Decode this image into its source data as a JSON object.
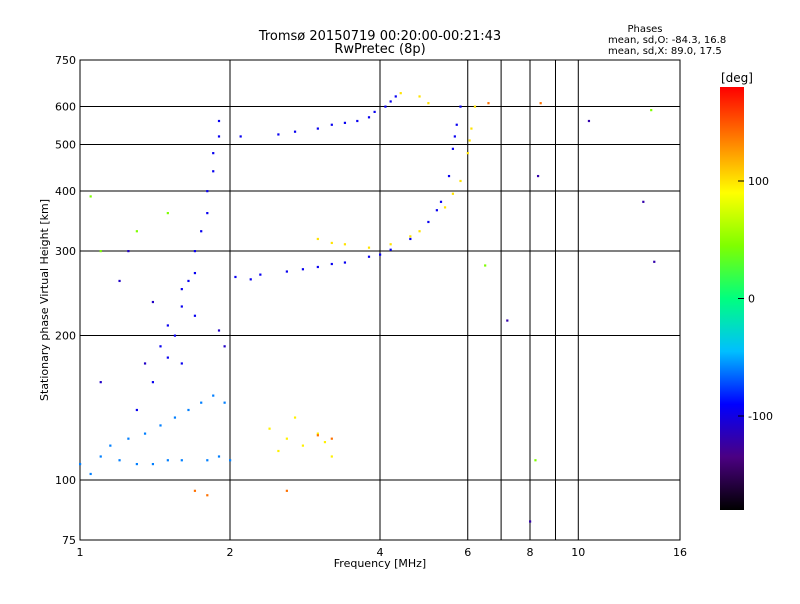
{
  "header": {
    "title_line1": "Tromsø 20150719 00:20:00-00:21:43",
    "title_line2": "RwPretec (8p)",
    "phase_heading": "Phases",
    "phase_o": "mean, sd,O: -84.3, 16.8",
    "phase_x": "mean, sd,X:  89.0, 17.5"
  },
  "colorbar": {
    "label": "[deg]",
    "ticks": [
      {
        "label": "100",
        "value": 100
      },
      {
        "label": "0",
        "value": 0
      },
      {
        "label": "-100",
        "value": -100
      }
    ],
    "range": [
      -180,
      180
    ],
    "colors": [
      "#000000",
      "#4b0082",
      "#0000ff",
      "#00bfff",
      "#00ff7f",
      "#7fff00",
      "#ffff00",
      "#ff7f00",
      "#ff0000"
    ]
  },
  "chart_data": {
    "type": "scatter",
    "xlabel": "Frequency [MHz]",
    "ylabel": "Stationary phase Virtual Height [km]",
    "x_scale": "log",
    "y_scale": "log",
    "xlim": [
      1,
      16
    ],
    "ylim": [
      75,
      750
    ],
    "grid": true,
    "x_ticks": [
      {
        "label": "1",
        "value": 1
      },
      {
        "label": "2",
        "value": 2
      },
      {
        "label": "4",
        "value": 4
      },
      {
        "label": "6",
        "value": 6
      },
      {
        "label": "8",
        "value": 8
      },
      {
        "label": "10",
        "value": 10
      },
      {
        "label": "16",
        "value": 16
      }
    ],
    "x_grid_extra": [
      7,
      9
    ],
    "y_ticks": [
      {
        "label": "75",
        "value": 75
      },
      {
        "label": "100",
        "value": 100
      },
      {
        "label": "200",
        "value": 200
      },
      {
        "label": "300",
        "value": 300
      },
      {
        "label": "400",
        "value": 400
      },
      {
        "label": "500",
        "value": 500
      },
      {
        "label": "600",
        "value": 600
      },
      {
        "label": "750",
        "value": 750
      }
    ],
    "series": [
      {
        "points": [
          [
            1.0,
            108
          ],
          [
            1.1,
            112
          ],
          [
            1.2,
            110
          ],
          [
            1.3,
            108
          ],
          [
            1.4,
            108
          ],
          [
            1.5,
            110
          ],
          [
            1.6,
            110
          ],
          [
            1.8,
            110
          ],
          [
            1.9,
            112
          ],
          [
            2.0,
            110
          ],
          [
            1.05,
            103
          ],
          [
            1.15,
            118
          ],
          [
            1.25,
            122
          ],
          [
            1.35,
            125
          ],
          [
            1.45,
            130
          ],
          [
            1.55,
            135
          ],
          [
            1.65,
            140
          ],
          [
            1.75,
            145
          ],
          [
            1.85,
            150
          ],
          [
            1.95,
            145
          ]
        ],
        "phase": -60
      },
      {
        "points": [
          [
            1.3,
            140
          ],
          [
            1.4,
            160
          ],
          [
            1.5,
            180
          ],
          [
            1.5,
            210
          ],
          [
            1.6,
            230
          ],
          [
            1.6,
            250
          ],
          [
            1.7,
            270
          ],
          [
            1.7,
            300
          ],
          [
            1.75,
            330
          ],
          [
            1.8,
            360
          ],
          [
            1.8,
            400
          ],
          [
            1.85,
            440
          ],
          [
            1.85,
            480
          ],
          [
            1.9,
            520
          ],
          [
            1.9,
            560
          ],
          [
            1.55,
            200
          ],
          [
            1.45,
            190
          ],
          [
            1.65,
            260
          ],
          [
            1.7,
            220
          ],
          [
            1.6,
            175
          ]
        ],
        "phase": -95
      },
      {
        "points": [
          [
            2.05,
            265
          ],
          [
            2.3,
            268
          ],
          [
            2.6,
            272
          ],
          [
            3.0,
            278
          ],
          [
            3.4,
            284
          ],
          [
            3.8,
            292
          ],
          [
            4.2,
            302
          ],
          [
            4.6,
            318
          ],
          [
            5.0,
            345
          ],
          [
            5.3,
            380
          ],
          [
            5.5,
            430
          ],
          [
            5.6,
            490
          ],
          [
            5.7,
            550
          ],
          [
            5.8,
            600
          ],
          [
            4.0,
            295
          ],
          [
            3.2,
            282
          ],
          [
            2.8,
            275
          ],
          [
            2.2,
            262
          ],
          [
            5.2,
            365
          ],
          [
            5.65,
            520
          ]
        ],
        "phase": -95
      },
      {
        "points": [
          [
            2.1,
            520
          ],
          [
            2.5,
            525
          ],
          [
            3.0,
            540
          ],
          [
            3.4,
            555
          ],
          [
            3.8,
            570
          ],
          [
            4.1,
            600
          ],
          [
            4.3,
            630
          ],
          [
            3.6,
            560
          ],
          [
            3.2,
            550
          ],
          [
            2.7,
            532
          ],
          [
            4.2,
            615
          ],
          [
            3.9,
            585
          ]
        ],
        "phase": -95
      },
      {
        "points": [
          [
            3.0,
            318
          ],
          [
            3.4,
            310
          ],
          [
            3.8,
            305
          ],
          [
            4.2,
            310
          ],
          [
            4.8,
            330
          ],
          [
            5.4,
            370
          ],
          [
            5.8,
            420
          ],
          [
            6.0,
            480
          ],
          [
            6.1,
            540
          ],
          [
            6.2,
            600
          ],
          [
            5.6,
            395
          ],
          [
            6.05,
            510
          ],
          [
            4.4,
            640
          ],
          [
            4.8,
            630
          ],
          [
            5.0,
            610
          ],
          [
            3.2,
            312
          ],
          [
            4.6,
            322
          ]
        ],
        "phase": 100
      },
      {
        "points": [
          [
            2.4,
            128
          ],
          [
            2.6,
            122
          ],
          [
            2.8,
            118
          ],
          [
            3.0,
            125
          ],
          [
            3.2,
            112
          ],
          [
            3.1,
            120
          ],
          [
            2.7,
            135
          ],
          [
            2.5,
            115
          ]
        ],
        "phase": 95
      },
      {
        "points": [
          [
            1.7,
            95
          ],
          [
            1.8,
            93
          ],
          [
            2.6,
            95
          ],
          [
            3.0,
            124
          ],
          [
            3.2,
            122
          ],
          [
            6.6,
            610
          ],
          [
            8.4,
            610
          ]
        ],
        "phase": 140
      },
      {
        "points": [
          [
            1.1,
            160
          ],
          [
            1.2,
            260
          ],
          [
            1.25,
            300
          ],
          [
            1.4,
            235
          ],
          [
            1.35,
            175
          ],
          [
            1.9,
            205
          ],
          [
            1.95,
            190
          ]
        ],
        "phase": -110
      },
      {
        "points": [
          [
            1.05,
            390
          ],
          [
            1.1,
            300
          ],
          [
            1.3,
            330
          ],
          [
            1.5,
            360
          ],
          [
            6.5,
            280
          ],
          [
            8.2,
            110
          ],
          [
            14.0,
            590
          ]
        ],
        "phase": 45
      },
      {
        "points": [
          [
            10.5,
            560
          ],
          [
            13.5,
            380
          ],
          [
            14.2,
            285
          ],
          [
            7.2,
            215
          ],
          [
            8.3,
            430
          ],
          [
            8.0,
            82
          ]
        ],
        "phase": -120
      }
    ]
  }
}
